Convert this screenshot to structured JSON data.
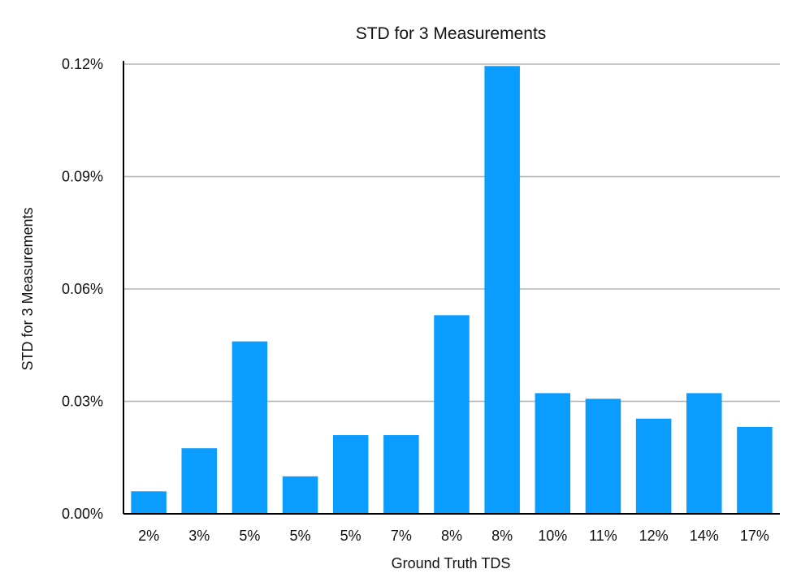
{
  "chart_data": {
    "type": "bar",
    "title": "STD for 3 Measurements",
    "xlabel": "Ground Truth TDS",
    "ylabel": "STD for 3 Measurements",
    "categories": [
      "2%",
      "3%",
      "5%",
      "5%",
      "5%",
      "7%",
      "8%",
      "8%",
      "10%",
      "11%",
      "12%",
      "14%",
      "17%"
    ],
    "values": [
      0.006,
      0.0175,
      0.046,
      0.01,
      0.021,
      0.021,
      0.053,
      0.1195,
      0.0322,
      0.0307,
      0.0254,
      0.0322,
      0.0232
    ],
    "ylim": [
      0,
      0.12
    ],
    "yticks": [
      0,
      0.03,
      0.06,
      0.09,
      0.12
    ],
    "ytick_labels": [
      "0.00%",
      "0.03%",
      "0.06%",
      "0.09%",
      "0.12%"
    ],
    "grid": true,
    "legend": "none",
    "bar_color": "#0a9cff",
    "grid_color": "#b3b3b3",
    "axis_color": "#000000"
  }
}
